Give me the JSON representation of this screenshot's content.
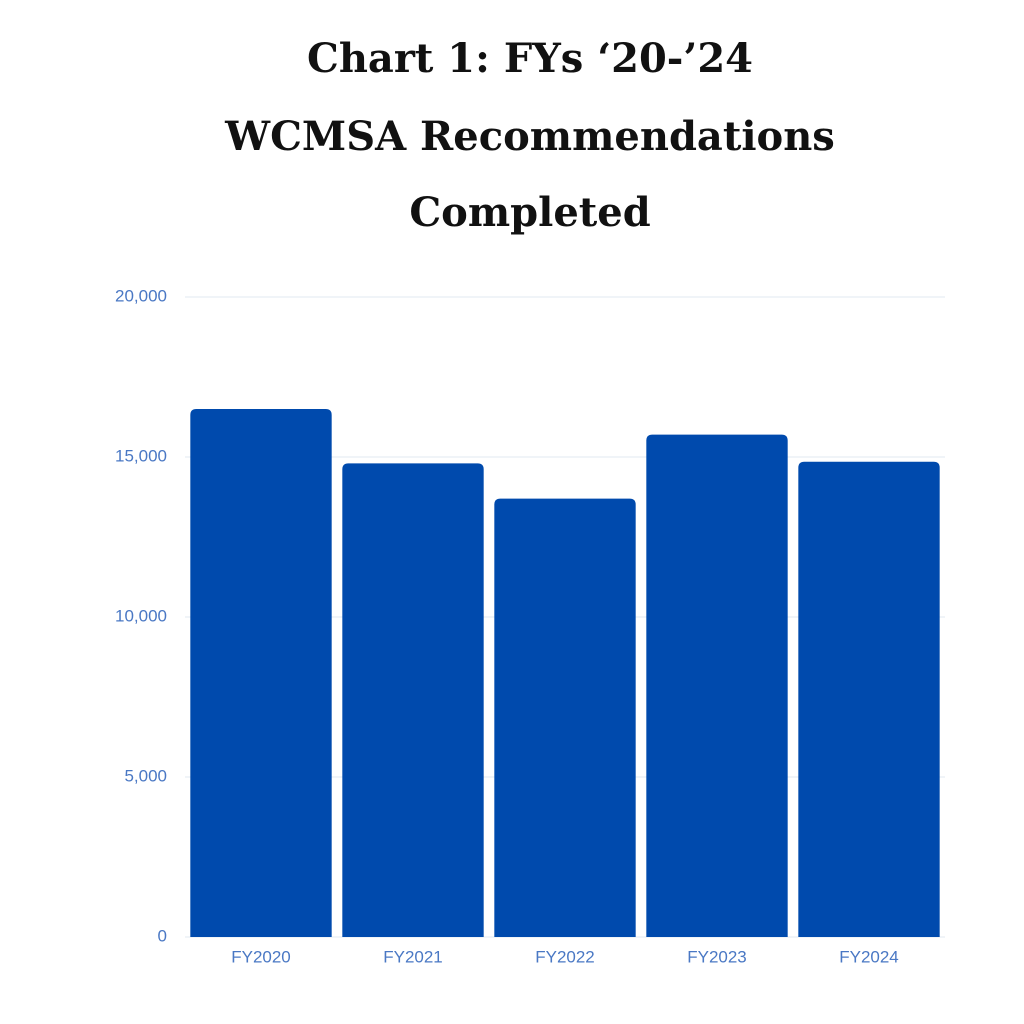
{
  "chart_data": {
    "type": "bar",
    "title": [
      "Chart 1: FYs ‘20-’24",
      "WCMSA Recommendations",
      "Completed"
    ],
    "categories": [
      "FY2020",
      "FY2021",
      "FY2022",
      "FY2023",
      "FY2024"
    ],
    "values": [
      16500,
      14800,
      13700,
      15700,
      14850
    ],
    "color": "#004aad",
    "ylim": [
      0,
      20000
    ],
    "yticks": [
      0,
      {
        "value": 5000,
        "label": "5,000"
      },
      {
        "value": 10000,
        "label": "10,000"
      },
      {
        "value": 15000,
        "label": "15,000"
      },
      {
        "value": 20000,
        "label": "20,000"
      }
    ],
    "grid": true
  }
}
